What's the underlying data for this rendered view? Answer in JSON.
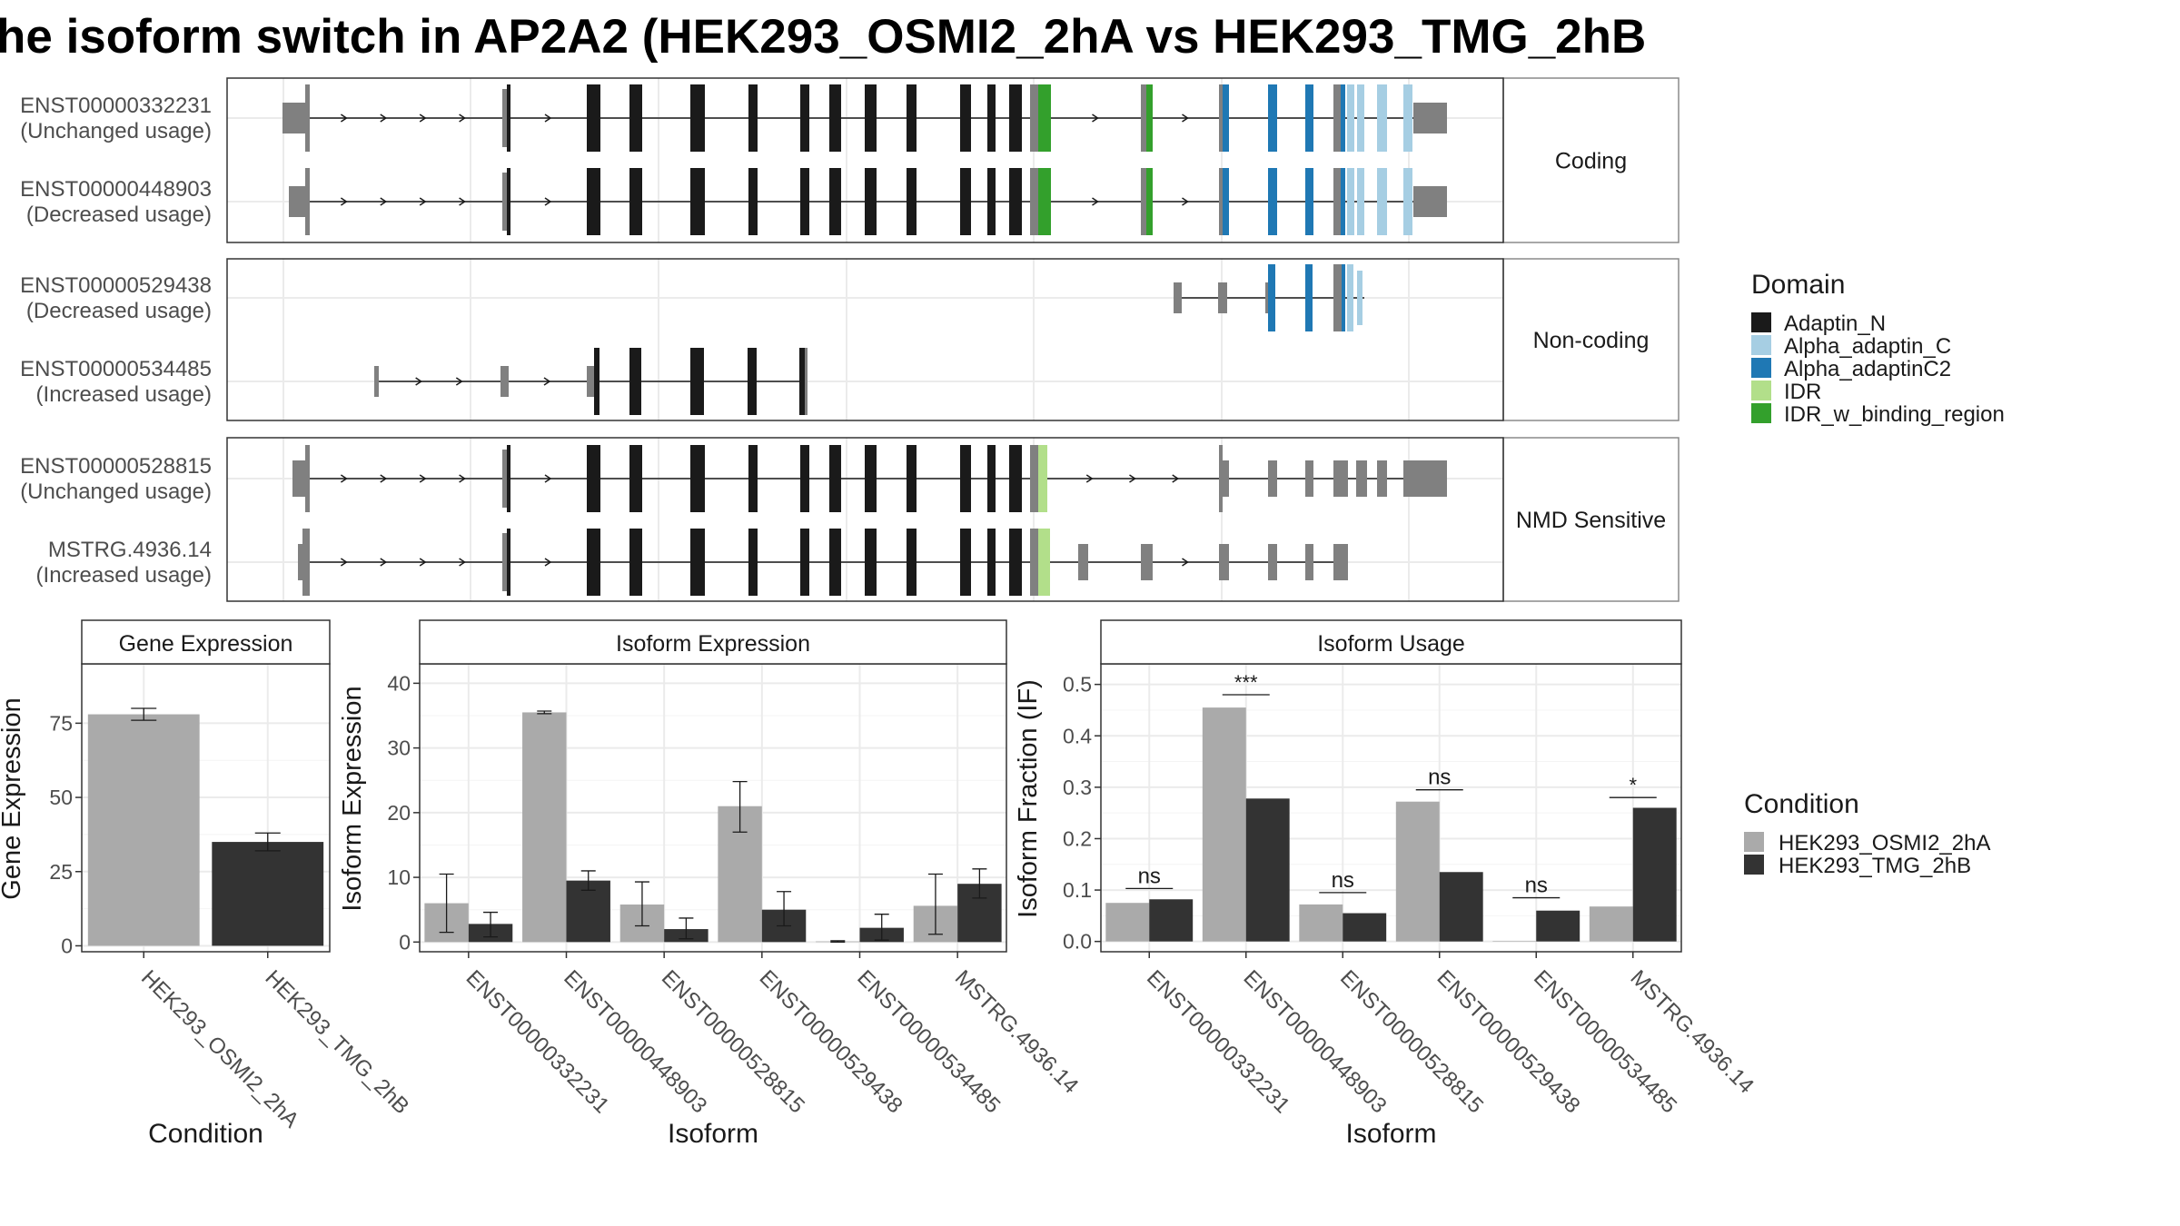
{
  "title": "he isoform switch in AP2A2 (HEK293_OSMI2_2hA vs HEK293_TMG_2hB",
  "colors": {
    "exon_gray": "#808080",
    "osmi": "#aaaaaa",
    "tmg": "#333333",
    "Adaptin_N": "#1a1a1a",
    "Alpha_adaptin_C": "#a6cee3",
    "Alpha_adaptinC2": "#1f78b4",
    "IDR": "#b2df8a",
    "IDR_w_binding_region": "#33a02c"
  },
  "structure": {
    "facets": [
      {
        "label": "Coding",
        "transcripts": [
          {
            "id": "ENST00000332231",
            "usage": "(Unchanged usage)"
          },
          {
            "id": "ENST00000448903",
            "usage": "(Decreased usage)"
          }
        ]
      },
      {
        "label": "Non-coding",
        "transcripts": [
          {
            "id": "ENST00000529438",
            "usage": "(Decreased usage)"
          },
          {
            "id": "ENST00000534485",
            "usage": "(Increased usage)"
          }
        ]
      },
      {
        "label": "NMD Sensitive",
        "transcripts": [
          {
            "id": "ENST00000528815",
            "usage": "(Unchanged usage)"
          },
          {
            "id": "MSTRG.4936.14",
            "usage": "(Increased usage)"
          }
        ]
      }
    ]
  },
  "legend_domain": {
    "title": "Domain",
    "items": [
      {
        "name": "Adaptin_N",
        "color": "#1a1a1a"
      },
      {
        "name": "Alpha_adaptin_C",
        "color": "#a6cee3"
      },
      {
        "name": "Alpha_adaptinC2",
        "color": "#1f78b4"
      },
      {
        "name": "IDR",
        "color": "#b2df8a"
      },
      {
        "name": "IDR_w_binding_region",
        "color": "#33a02c"
      }
    ]
  },
  "legend_condition": {
    "title": "Condition",
    "items": [
      {
        "name": "HEK293_OSMI2_2hA",
        "color": "#aaaaaa"
      },
      {
        "name": "HEK293_TMG_2hB",
        "color": "#333333"
      }
    ]
  },
  "chart_data": [
    {
      "type": "bar",
      "title": "Gene Expression",
      "xlabel": "Condition",
      "ylabel": "Gene Expression",
      "categories": [
        "HEK293_OSMI2_2hA",
        "HEK293_TMG_2hB"
      ],
      "values": [
        78,
        35
      ],
      "errors": [
        [
          76,
          80
        ],
        [
          32,
          38
        ]
      ],
      "ylim": [
        -2,
        95
      ],
      "yticks": [
        0,
        25,
        50,
        75
      ]
    },
    {
      "type": "bar",
      "title": "Isoform Expression",
      "xlabel": "Isoform",
      "ylabel": "Isoform Expression",
      "categories": [
        "ENST00000332231",
        "ENST00000448903",
        "ENST00000528815",
        "ENST00000529438",
        "ENST00000534485",
        "MSTRG.4936.14"
      ],
      "series": [
        {
          "name": "HEK293_OSMI2_2hA",
          "values": [
            6,
            35.5,
            5.8,
            21,
            0.1,
            5.6
          ],
          "errors": [
            [
              1.5,
              10.5
            ],
            [
              35.3,
              35.7
            ],
            [
              2.5,
              9.3
            ],
            [
              17,
              24.8
            ],
            [
              0,
              0.2
            ],
            [
              1.2,
              10.5
            ]
          ]
        },
        {
          "name": "HEK293_TMG_2hB",
          "values": [
            2.8,
            9.5,
            2,
            5,
            2.2,
            9
          ],
          "errors": [
            [
              0.8,
              4.6
            ],
            [
              8,
              11
            ],
            [
              0.5,
              3.7
            ],
            [
              2.5,
              7.8
            ],
            [
              0.3,
              4.3
            ],
            [
              6.8,
              11.3
            ]
          ]
        }
      ],
      "ylim": [
        -1.5,
        43
      ],
      "yticks": [
        0,
        10,
        20,
        30,
        40
      ]
    },
    {
      "type": "bar",
      "title": "Isoform Usage",
      "xlabel": "Isoform",
      "ylabel": "Isoform Fraction (IF)",
      "categories": [
        "ENST00000332231",
        "ENST00000448903",
        "ENST00000528815",
        "ENST00000529438",
        "ENST00000534485",
        "MSTRG.4936.14"
      ],
      "series": [
        {
          "name": "HEK293_OSMI2_2hA",
          "values": [
            0.075,
            0.455,
            0.072,
            0.272,
            0.001,
            0.068
          ]
        },
        {
          "name": "HEK293_TMG_2hB",
          "values": [
            0.082,
            0.278,
            0.055,
            0.135,
            0.06,
            0.26
          ]
        }
      ],
      "significance": [
        "ns",
        "***",
        "ns",
        "ns",
        "ns",
        "*"
      ],
      "sig_y": [
        0.103,
        0.48,
        0.095,
        0.295,
        0.085,
        0.28
      ],
      "ylim": [
        -0.02,
        0.54
      ],
      "yticks": [
        0.0,
        0.1,
        0.2,
        0.3,
        0.4,
        0.5
      ],
      "ytick_labels": [
        "0.0",
        "0.1",
        "0.2",
        "0.3",
        "0.4",
        "0.5"
      ]
    }
  ]
}
